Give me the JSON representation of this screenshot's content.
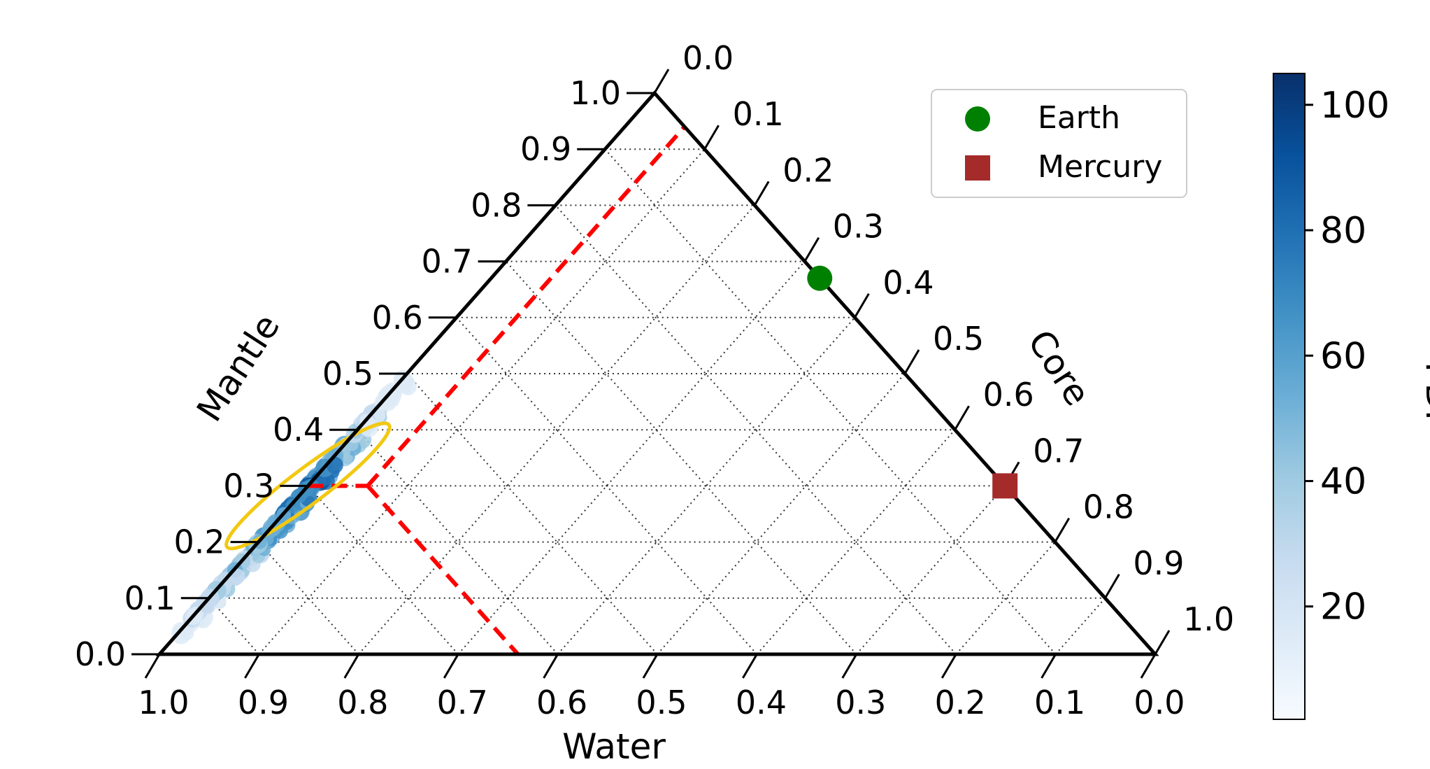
{
  "chart_data": {
    "type": "scatter",
    "subtype": "ternary",
    "axes": {
      "bottom": {
        "label": "Water",
        "ticks": [
          "1.0",
          "0.9",
          "0.8",
          "0.7",
          "0.6",
          "0.5",
          "0.4",
          "0.3",
          "0.2",
          "0.1",
          "0.0"
        ]
      },
      "left": {
        "label": "Mantle",
        "ticks": [
          "0.0",
          "0.1",
          "0.2",
          "0.3",
          "0.4",
          "0.5",
          "0.6",
          "0.7",
          "0.8",
          "0.9",
          "1.0"
        ]
      },
      "right": {
        "label": "Core",
        "ticks": [
          "0.0",
          "0.1",
          "0.2",
          "0.3",
          "0.4",
          "0.5",
          "0.6",
          "0.7",
          "0.8",
          "0.9",
          "1.0"
        ]
      }
    },
    "grid": true,
    "grid_style": "dotted",
    "legend": {
      "placement": "top-right",
      "entries": [
        {
          "name": "Earth",
          "marker": "circle",
          "color": "#008000"
        },
        {
          "name": "Mercury",
          "marker": "square",
          "color": "#a52a2a"
        }
      ]
    },
    "points": [
      {
        "name": "Earth",
        "water": 0.0,
        "mantle": 0.67,
        "core": 0.33
      },
      {
        "name": "Mercury",
        "water": 0.0,
        "mantle": 0.3,
        "core": 0.7
      }
    ],
    "pdf_cloud": {
      "description_axes": "water-mantle ridge, core near 0",
      "ridge": [
        {
          "water": 0.95,
          "mantle": 0.04,
          "density": 20
        },
        {
          "water": 0.91,
          "mantle": 0.09,
          "density": 30
        },
        {
          "water": 0.87,
          "mantle": 0.14,
          "density": 45
        },
        {
          "water": 0.84,
          "mantle": 0.19,
          "density": 60
        },
        {
          "water": 0.81,
          "mantle": 0.24,
          "density": 80
        },
        {
          "water": 0.79,
          "mantle": 0.29,
          "density": 100
        },
        {
          "water": 0.76,
          "mantle": 0.33,
          "density": 85
        },
        {
          "water": 0.73,
          "mantle": 0.38,
          "density": 55
        },
        {
          "water": 0.69,
          "mantle": 0.43,
          "density": 30
        },
        {
          "water": 0.65,
          "mantle": 0.48,
          "density": 15
        }
      ]
    },
    "ellipse_center": {
      "water": 0.76,
      "mantle": 0.3
    },
    "estimate": {
      "water": 0.64,
      "mantle": 0.3,
      "core": 0.06
    },
    "colorbar": {
      "label": "PDF",
      "ticks": [
        "20",
        "40",
        "60",
        "80",
        "100"
      ],
      "range": [
        2,
        105
      ],
      "colormap": "Blues"
    },
    "colors": {
      "guide": "#ff0000",
      "ellipse": "#f2c811",
      "frame": "#000000"
    }
  }
}
